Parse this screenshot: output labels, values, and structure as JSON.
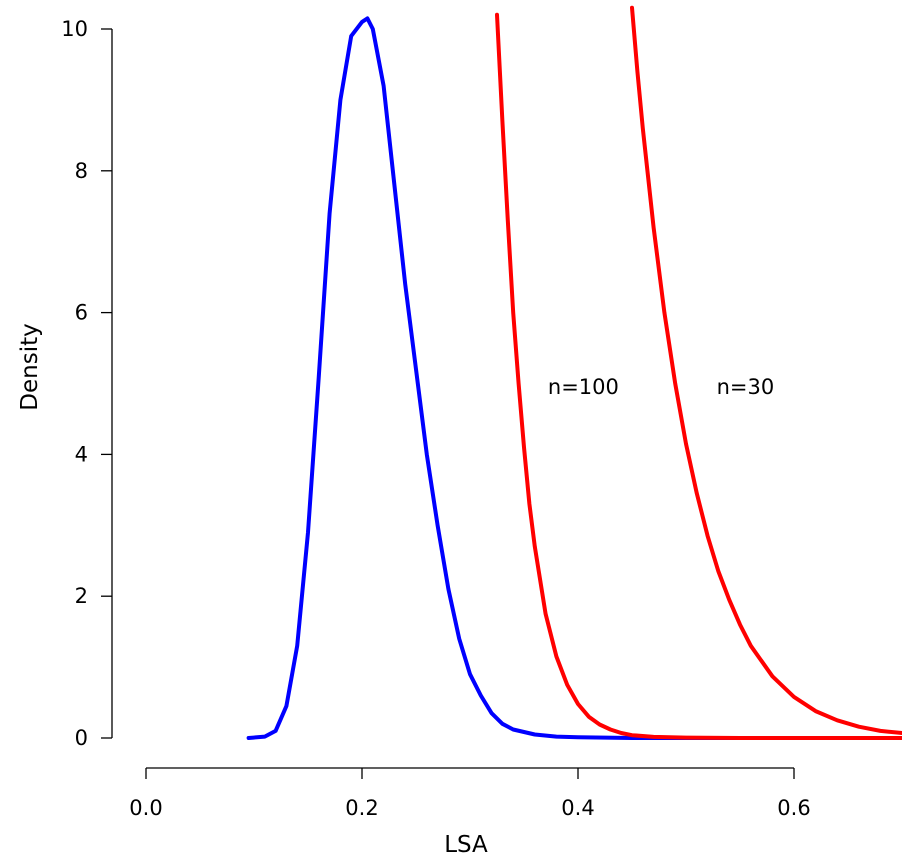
{
  "chart_data": {
    "type": "line",
    "title": "",
    "xlabel": "LSA",
    "ylabel": "Density",
    "xlim": [
      0.0,
      0.7
    ],
    "ylim": [
      0,
      10
    ],
    "grid": false,
    "legend": "none",
    "x_ticks": [
      0.0,
      0.2,
      0.4,
      0.6
    ],
    "x_tick_labels": [
      "0.0",
      "0.2",
      "0.4",
      "0.6"
    ],
    "y_ticks": [
      0,
      2,
      4,
      6,
      8,
      10
    ],
    "y_tick_labels": [
      "0",
      "2",
      "4",
      "6",
      "8",
      "10"
    ],
    "annotations": [
      {
        "text": "n=100",
        "x": 0.405,
        "y": 4.95
      },
      {
        "text": "n=30",
        "x": 0.555,
        "y": 4.95
      }
    ],
    "series": [
      {
        "color": "#0000ff",
        "x": [
          0.095,
          0.11,
          0.12,
          0.13,
          0.14,
          0.15,
          0.16,
          0.17,
          0.18,
          0.19,
          0.2,
          0.205,
          0.21,
          0.22,
          0.23,
          0.24,
          0.25,
          0.26,
          0.27,
          0.28,
          0.29,
          0.3,
          0.31,
          0.32,
          0.33,
          0.34,
          0.36,
          0.38,
          0.4,
          0.45,
          0.5,
          0.55,
          0.6,
          0.7
        ],
        "y": [
          0.0,
          0.02,
          0.1,
          0.45,
          1.3,
          2.9,
          5.1,
          7.4,
          9.0,
          9.9,
          10.1,
          10.15,
          10.0,
          9.2,
          7.8,
          6.4,
          5.2,
          4.0,
          3.0,
          2.1,
          1.4,
          0.9,
          0.6,
          0.35,
          0.2,
          0.12,
          0.05,
          0.02,
          0.01,
          0.0,
          0.0,
          0.0,
          0.0,
          0.0
        ]
      },
      {
        "name": "n=100",
        "color": "#ff0000",
        "x": [
          0.325,
          0.33,
          0.335,
          0.34,
          0.345,
          0.35,
          0.355,
          0.36,
          0.37,
          0.38,
          0.39,
          0.4,
          0.41,
          0.42,
          0.43,
          0.44,
          0.45,
          0.47,
          0.5,
          0.55,
          0.6,
          0.7
        ],
        "y": [
          10.2,
          8.7,
          7.3,
          6.0,
          5.0,
          4.1,
          3.3,
          2.7,
          1.75,
          1.15,
          0.75,
          0.48,
          0.3,
          0.19,
          0.12,
          0.07,
          0.04,
          0.015,
          0.005,
          0.0,
          0.0,
          0.0
        ]
      },
      {
        "name": "n=30",
        "color": "#ff0000",
        "x": [
          0.45,
          0.455,
          0.46,
          0.465,
          0.47,
          0.48,
          0.49,
          0.5,
          0.51,
          0.52,
          0.53,
          0.54,
          0.55,
          0.56,
          0.58,
          0.6,
          0.62,
          0.64,
          0.66,
          0.68,
          0.7
        ],
        "y": [
          10.3,
          9.4,
          8.6,
          7.9,
          7.2,
          6.0,
          5.0,
          4.15,
          3.45,
          2.85,
          2.35,
          1.95,
          1.6,
          1.3,
          0.87,
          0.58,
          0.38,
          0.25,
          0.16,
          0.1,
          0.07
        ]
      }
    ]
  }
}
